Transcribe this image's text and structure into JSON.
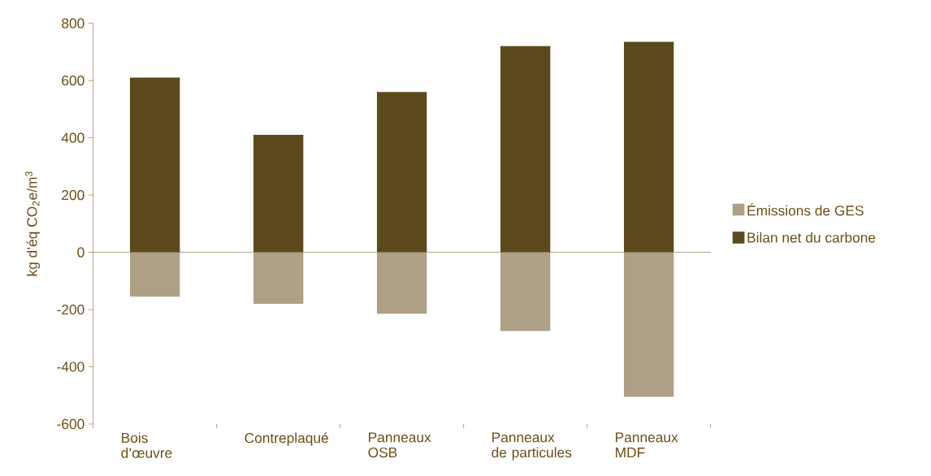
{
  "chart_data": {
    "type": "bar",
    "ylabel": "kg d’éq CO$_{2}$e/m$^{3}$",
    "categories": [
      "Bois d’œuvre",
      "Contreplaqué",
      "Panneaux OSB",
      "Panneaux de particules",
      "Panneaux MDF"
    ],
    "series": [
      {
        "name": "Bilan net du carbone",
        "color": "#5c4a1c",
        "values": [
          610,
          410,
          560,
          720,
          735
        ]
      },
      {
        "name": "Émissions de GES",
        "color": "#ada084",
        "values": [
          -155,
          -180,
          -215,
          -275,
          -505
        ]
      }
    ],
    "stacked": true,
    "ref_lines": [
      {
        "axis": "y",
        "value": 0
      }
    ],
    "ylim": [
      -600,
      800
    ],
    "yticks": [
      -600,
      -400,
      -200,
      0,
      200,
      400,
      600,
      800
    ],
    "grid": false,
    "legend": "right"
  }
}
